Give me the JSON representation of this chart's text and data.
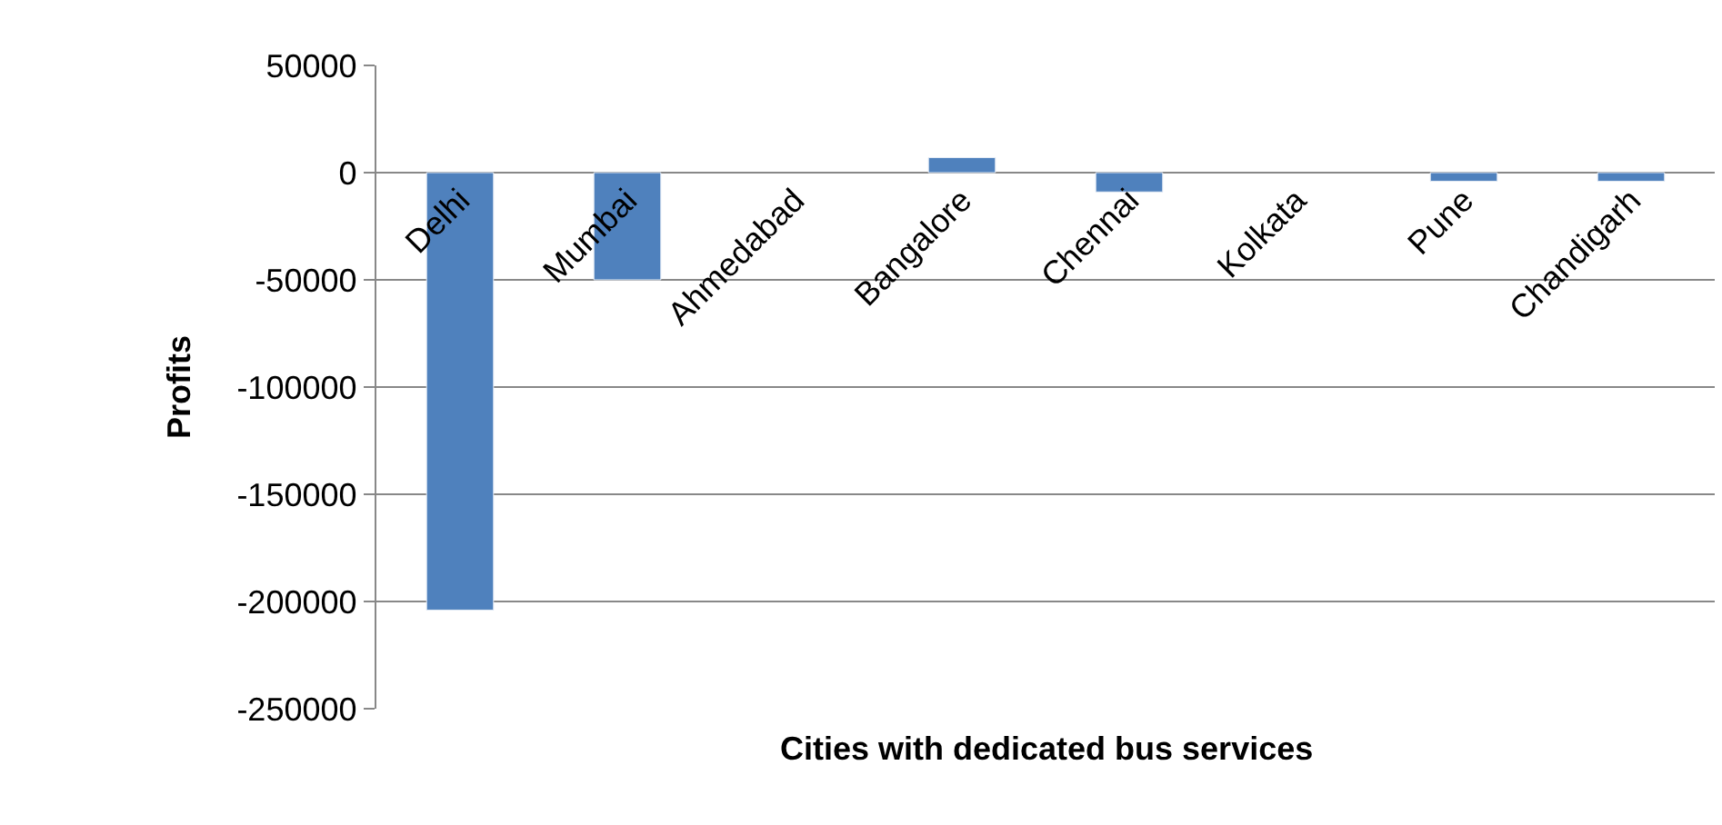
{
  "chart_data": {
    "type": "bar",
    "xlabel": "Cities with dedicated bus services",
    "ylabel": "Profits",
    "categories": [
      "Delhi",
      "Mumbai",
      "Ahmedabad",
      "Bangalore",
      "Chennai",
      "Kolkata",
      "Pune",
      "Chandigarh"
    ],
    "values": [
      -204000,
      -50000,
      null,
      7000,
      -9000,
      null,
      -4000,
      -4000
    ],
    "color": "#4f81bd",
    "ylim": [
      -250000,
      50000
    ],
    "yticks": [
      -250000,
      -200000,
      -150000,
      -100000,
      -50000,
      0,
      50000
    ],
    "grid": "y"
  }
}
